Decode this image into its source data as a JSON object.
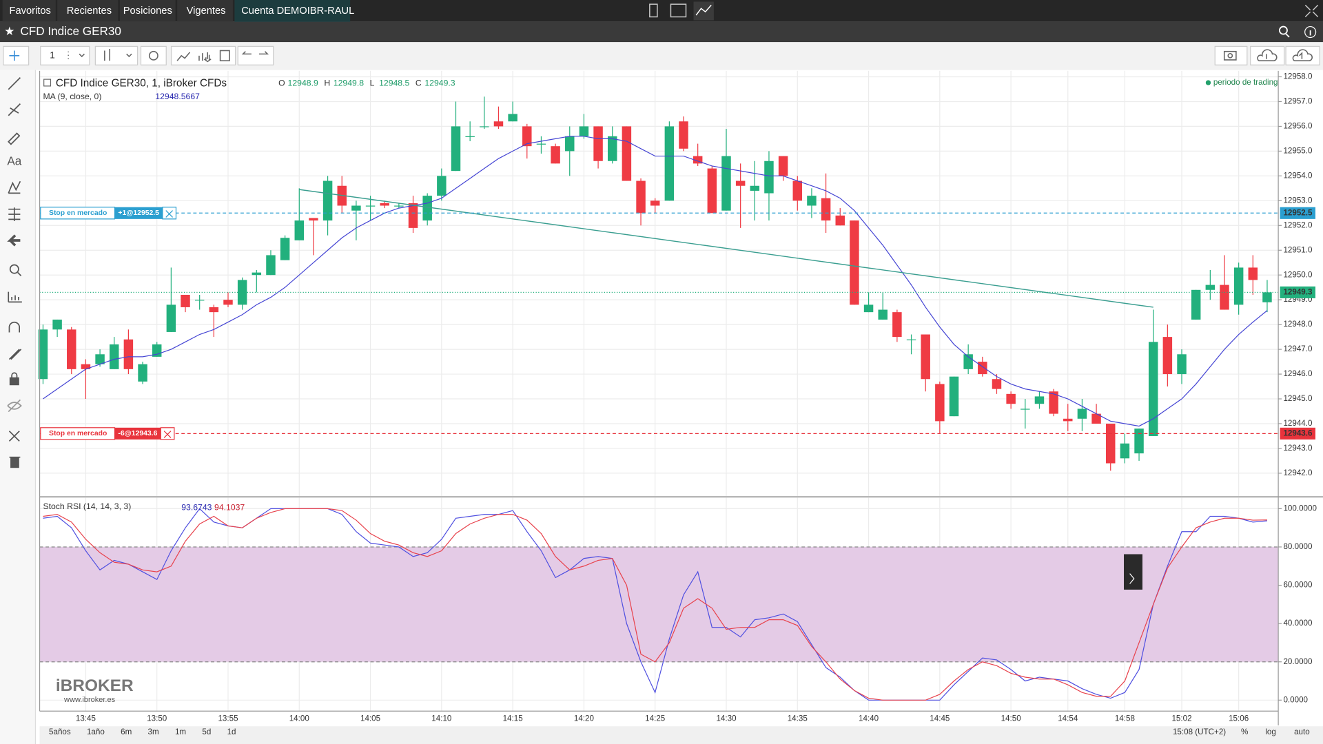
{
  "menu": [
    "Favoritos",
    "Recientes",
    "Posiciones",
    "Vigentes",
    "Cuenta DEMOIBR-RAUL"
  ],
  "symbol_bar": {
    "title": "CFD Indice GER30"
  },
  "toolbar": {
    "interval": "1"
  },
  "drawing_toolbar": {
    "text_tool": "Aa"
  },
  "logo": {
    "name": "iBROKER",
    "url": "www.ibroker.es"
  },
  "range_buttons": [
    "5años",
    "1año",
    "6m",
    "3m",
    "1m",
    "5d",
    "1d"
  ],
  "timezone": "15:08 (UTC+2)",
  "scale_options": [
    "%",
    "log",
    "auto"
  ],
  "chart_data": [
    {
      "type": "candlestick",
      "title": "CFD Indice GER30, 1, iBroker CFDs",
      "status": "periodo de trading",
      "up_color": "#22b07d",
      "down_color": "#ef3b44",
      "categories": [
        null,
        null,
        null,
        "13:45",
        null,
        null,
        null,
        null,
        "13:50",
        null,
        null,
        null,
        null,
        "13:55",
        null,
        null,
        null,
        null,
        "14:00",
        null,
        null,
        null,
        null,
        "14:05",
        null,
        null,
        null,
        null,
        "14:10",
        null,
        null,
        null,
        null,
        "14:15",
        null,
        null,
        null,
        null,
        "14:20",
        null,
        null,
        null,
        null,
        "14:25",
        null,
        null,
        null,
        null,
        "14:30",
        null,
        null,
        null,
        null,
        "14:35",
        null,
        null,
        null,
        null,
        "14:40",
        null,
        null,
        null,
        null,
        "14:45",
        null,
        null,
        null,
        null,
        "14:50",
        null,
        null,
        null,
        "14:54",
        null,
        null,
        null,
        "14:58",
        null,
        null,
        null,
        "15:02",
        null,
        null,
        null,
        "15:06",
        null,
        null
      ],
      "open": [
        12945.8,
        12947.8,
        12947.8,
        12946.4,
        12946.4,
        12946.2,
        12947.4,
        12945.7,
        12946.7,
        12947.7,
        12949.2,
        12949.0,
        12948.7,
        12949.0,
        12948.8,
        12950.0,
        12950.0,
        12950.6,
        12951.4,
        12952.3,
        12952.2,
        12953.6,
        12952.6,
        12952.8,
        12952.9,
        12952.8,
        12952.9,
        12952.2,
        12953.2,
        12954.2,
        12955.6,
        12956.0,
        12956.2,
        12956.2,
        12956.0,
        12955.3,
        12955.2,
        12955.0,
        12955.6,
        12956.0,
        12954.6,
        12956.0,
        12953.8,
        12953.0,
        12953.0,
        12956.2,
        12954.8,
        12954.3,
        12952.6,
        12953.8,
        12953.4,
        12953.3,
        12954.8,
        12953.8,
        12952.8,
        12953.1,
        12952.4,
        12952.2,
        12948.5,
        12948.2,
        12948.5,
        12947.4,
        12947.6,
        12945.6,
        12944.3,
        12946.2,
        12946.5,
        12945.8,
        12945.2,
        12944.6,
        12944.8,
        12945.3,
        12944.2,
        12944.2,
        12944.4,
        12944.0,
        12942.6,
        12942.8,
        12943.5,
        12947.5,
        12946.0,
        12948.2,
        12949.4,
        12949.6,
        12948.8,
        12950.3,
        12948.9
      ],
      "high": [
        12948.0,
        12948.2,
        12947.9,
        12946.6,
        12947.0,
        12947.5,
        12947.8,
        12946.5,
        12947.3,
        12950.3,
        12949.2,
        12949.2,
        12948.8,
        12949.3,
        12949.9,
        12950.2,
        12951.0,
        12951.6,
        12953.5,
        12952.3,
        12954.0,
        12954.0,
        12953.0,
        12953.2,
        12953.0,
        12952.9,
        12953.2,
        12953.3,
        12954.3,
        12957.0,
        12956.2,
        12957.2,
        12956.8,
        12957.0,
        12956.1,
        12955.6,
        12955.3,
        12956.0,
        12956.5,
        12956.0,
        12956.0,
        12956.0,
        12953.9,
        12953.1,
        12956.2,
        12956.4,
        12955.3,
        12954.4,
        12955.9,
        12954.5,
        12954.6,
        12955.0,
        12954.8,
        12954.0,
        12953.5,
        12954.1,
        12952.7,
        12952.2,
        12949.3,
        12949.3,
        12948.6,
        12947.6,
        12947.6,
        12945.7,
        12945.9,
        12947.2,
        12946.7,
        12946.0,
        12945.3,
        12945.0,
        12945.3,
        12945.4,
        12944.8,
        12945.0,
        12944.8,
        12944.0,
        12943.6,
        12943.8,
        12948.6,
        12948.0,
        12947.0,
        12949.4,
        12950.2,
        12950.8,
        12950.5,
        12950.8,
        12949.8
      ],
      "low": [
        12945.6,
        12947.5,
        12946.0,
        12945.0,
        12946.3,
        12946.2,
        12946.0,
        12945.6,
        12946.7,
        12947.7,
        12948.5,
        12948.6,
        12947.5,
        12948.7,
        12948.6,
        12949.3,
        12950.0,
        12950.6,
        12951.4,
        12950.8,
        12951.6,
        12952.5,
        12951.4,
        12952.2,
        12952.7,
        12952.7,
        12951.7,
        12952.0,
        12953.0,
        12954.2,
        12955.4,
        12955.9,
        12955.9,
        12956.2,
        12954.7,
        12954.9,
        12954.5,
        12954.0,
        12955.5,
        12954.3,
        12954.5,
        12953.8,
        12952.0,
        12952.5,
        12953.0,
        12955.0,
        12954.4,
        12952.5,
        12952.6,
        12951.9,
        12952.2,
        12952.2,
        12953.8,
        12952.6,
        12952.3,
        12951.7,
        12952.0,
        12948.8,
        12948.5,
        12948.2,
        12947.3,
        12946.8,
        12945.3,
        12943.6,
        12944.3,
        12946.0,
        12945.9,
        12945.2,
        12944.6,
        12943.8,
        12944.6,
        12944.3,
        12943.7,
        12943.7,
        12944.0,
        12942.1,
        12942.4,
        12942.5,
        12943.5,
        12945.5,
        12945.6,
        12948.2,
        12949.0,
        12948.6,
        12948.4,
        12949.2,
        12948.5
      ],
      "close": [
        12947.8,
        12948.2,
        12946.2,
        12946.2,
        12946.8,
        12947.2,
        12946.2,
        12946.4,
        12947.2,
        12948.8,
        12948.7,
        12949.0,
        12948.5,
        12948.8,
        12949.8,
        12950.1,
        12950.8,
        12951.5,
        12952.2,
        12952.2,
        12953.8,
        12952.8,
        12952.8,
        12952.8,
        12952.8,
        12952.8,
        12951.9,
        12953.2,
        12954.0,
        12956.0,
        12955.6,
        12956.0,
        12956.0,
        12956.5,
        12955.2,
        12955.3,
        12954.5,
        12955.6,
        12956.0,
        12954.6,
        12955.6,
        12953.8,
        12952.5,
        12952.8,
        12956.0,
        12955.1,
        12954.5,
        12952.5,
        12954.8,
        12953.6,
        12953.6,
        12954.6,
        12954.0,
        12953.0,
        12953.2,
        12952.2,
        12952.0,
        12948.8,
        12948.8,
        12948.6,
        12947.5,
        12947.4,
        12945.8,
        12944.1,
        12945.9,
        12946.8,
        12946.0,
        12945.4,
        12944.8,
        12944.6,
        12945.1,
        12944.4,
        12944.1,
        12944.6,
        12944.0,
        12942.4,
        12943.2,
        12943.8,
        12947.3,
        12946.0,
        12946.8,
        12949.4,
        12949.6,
        12948.6,
        12950.3,
        12949.8,
        12949.3
      ],
      "ohlc_legend": {
        "labels": [
          "O",
          "H",
          "L",
          "C"
        ],
        "values": [
          12948.9,
          12949.8,
          12948.5,
          12949.3
        ]
      },
      "series": [
        {
          "name": "MA (9, close, 0)",
          "color": "#4646d4",
          "values": [
            12945.0,
            12945.4,
            12945.8,
            12946.2,
            12946.4,
            12946.6,
            12946.7,
            12946.7,
            12946.8,
            12947.0,
            12947.3,
            12947.6,
            12947.8,
            12948.1,
            12948.4,
            12948.8,
            12949.1,
            12949.5,
            12950.0,
            12950.5,
            12951.0,
            12951.5,
            12951.9,
            12952.2,
            12952.5,
            12952.7,
            12952.8,
            12952.9,
            12953.1,
            12953.5,
            12953.9,
            12954.3,
            12954.7,
            12955.0,
            12955.3,
            12955.4,
            12955.5,
            12955.6,
            12955.6,
            12955.5,
            12955.5,
            12955.4,
            12955.1,
            12954.8,
            12954.8,
            12954.8,
            12954.6,
            12954.4,
            12954.3,
            12954.2,
            12954.1,
            12954.0,
            12954.0,
            12953.8,
            12953.6,
            12953.4,
            12953.1,
            12952.6,
            12951.9,
            12951.2,
            12950.4,
            12949.6,
            12948.7,
            12947.9,
            12947.2,
            12946.7,
            12946.3,
            12945.9,
            12945.6,
            12945.4,
            12945.3,
            12945.2,
            12945.0,
            12944.7,
            12944.4,
            12944.1,
            12944.0,
            12943.9,
            12944.2,
            12944.6,
            12945.0,
            12945.6,
            12946.3,
            12947.0,
            12947.6,
            12948.1,
            12948.5667
          ]
        }
      ],
      "ylim": [
        12941.08,
        12958.24
      ],
      "yticks": [
        {
          "value": 12942,
          "label": "12942.0"
        },
        {
          "value": 12943,
          "label": "12943.0"
        },
        {
          "value": 12944,
          "label": "12944.0"
        },
        {
          "value": 12945,
          "label": "12945.0"
        },
        {
          "value": 12946,
          "label": "12946.0"
        },
        {
          "value": 12947,
          "label": "12947.0"
        },
        {
          "value": 12948,
          "label": "12948.0"
        },
        {
          "value": 12949,
          "label": "12949.0"
        },
        {
          "value": 12950,
          "label": "12950.0"
        },
        {
          "value": 12951,
          "label": "12951.0"
        },
        {
          "value": 12952,
          "label": "12952.0"
        },
        {
          "value": 12953,
          "label": "12953.0"
        },
        {
          "value": 12954,
          "label": "12954.0"
        },
        {
          "value": 12955,
          "label": "12955.0"
        },
        {
          "value": 12956,
          "label": "12956.0"
        },
        {
          "value": 12957,
          "label": "12957.0"
        },
        {
          "value": 12958,
          "label": "12958.0"
        }
      ],
      "grid": true,
      "orders": [
        {
          "label": "Stop en mercado",
          "tag": "+1@12952.5",
          "price": 12952.5,
          "color": "#2b9fd0"
        },
        {
          "label": "Stop en mercado",
          "tag": "-6@12943.6",
          "price": 12943.6,
          "color": "#e8333c"
        }
      ],
      "last_price": 12949.3,
      "trend_line": {
        "start": 12953.45,
        "end": 12948.7,
        "color": "#3a9e90"
      }
    },
    {
      "type": "line",
      "title": "Stoch RSI (14, 14, 3, 3)",
      "series": [
        {
          "color": "#5050e0",
          "values": [
            95,
            96,
            90,
            78,
            68,
            73,
            71,
            67,
            63,
            78,
            90,
            100,
            93,
            91,
            90,
            95,
            100,
            100,
            100,
            100,
            100,
            97,
            88,
            82,
            81,
            80,
            75,
            77,
            84,
            95,
            96,
            97,
            97,
            99,
            88,
            78,
            64,
            68,
            74,
            75,
            74,
            40,
            20,
            4,
            32,
            55,
            67,
            38,
            38,
            33,
            42,
            43,
            45,
            41,
            29,
            17,
            12,
            5,
            0,
            0,
            0,
            0,
            0,
            0,
            8,
            15,
            22,
            21,
            16,
            10,
            12,
            11,
            10,
            6,
            3,
            1,
            4,
            16,
            50,
            70,
            88,
            88,
            96,
            96,
            95,
            93,
            93.6743
          ]
        },
        {
          "color": "#e8434d",
          "values": [
            96,
            97,
            93,
            84,
            77,
            72,
            71,
            68,
            67,
            70,
            83,
            92,
            96,
            91,
            90,
            95,
            98,
            100,
            100,
            100,
            100,
            99,
            94,
            87,
            83,
            81,
            77,
            75,
            78,
            87,
            92,
            95,
            97,
            97,
            94,
            87,
            75,
            68,
            70,
            73,
            74,
            60,
            24,
            20,
            30,
            48,
            53,
            48,
            37,
            38,
            38,
            42,
            42,
            39,
            28,
            20,
            11,
            5,
            1,
            0,
            0,
            0,
            0,
            3,
            10,
            16,
            20,
            18,
            14,
            12,
            11,
            11,
            8,
            4,
            2,
            2,
            10,
            30,
            50,
            69,
            80,
            90,
            93,
            95,
            95,
            94,
            94.1037
          ]
        }
      ],
      "ylim": [
        -5.29,
        104.85
      ],
      "yticks": [
        {
          "value": 0,
          "label": "0.0000"
        },
        {
          "value": 20,
          "label": "20.0000"
        },
        {
          "value": 40,
          "label": "40.0000"
        },
        {
          "value": 60,
          "label": "60.0000"
        },
        {
          "value": 80,
          "label": "80.0000"
        },
        {
          "value": 100,
          "label": "100.0000"
        }
      ],
      "band": [
        20,
        80
      ],
      "band_color": "#e4cbe6",
      "grid": true
    }
  ]
}
